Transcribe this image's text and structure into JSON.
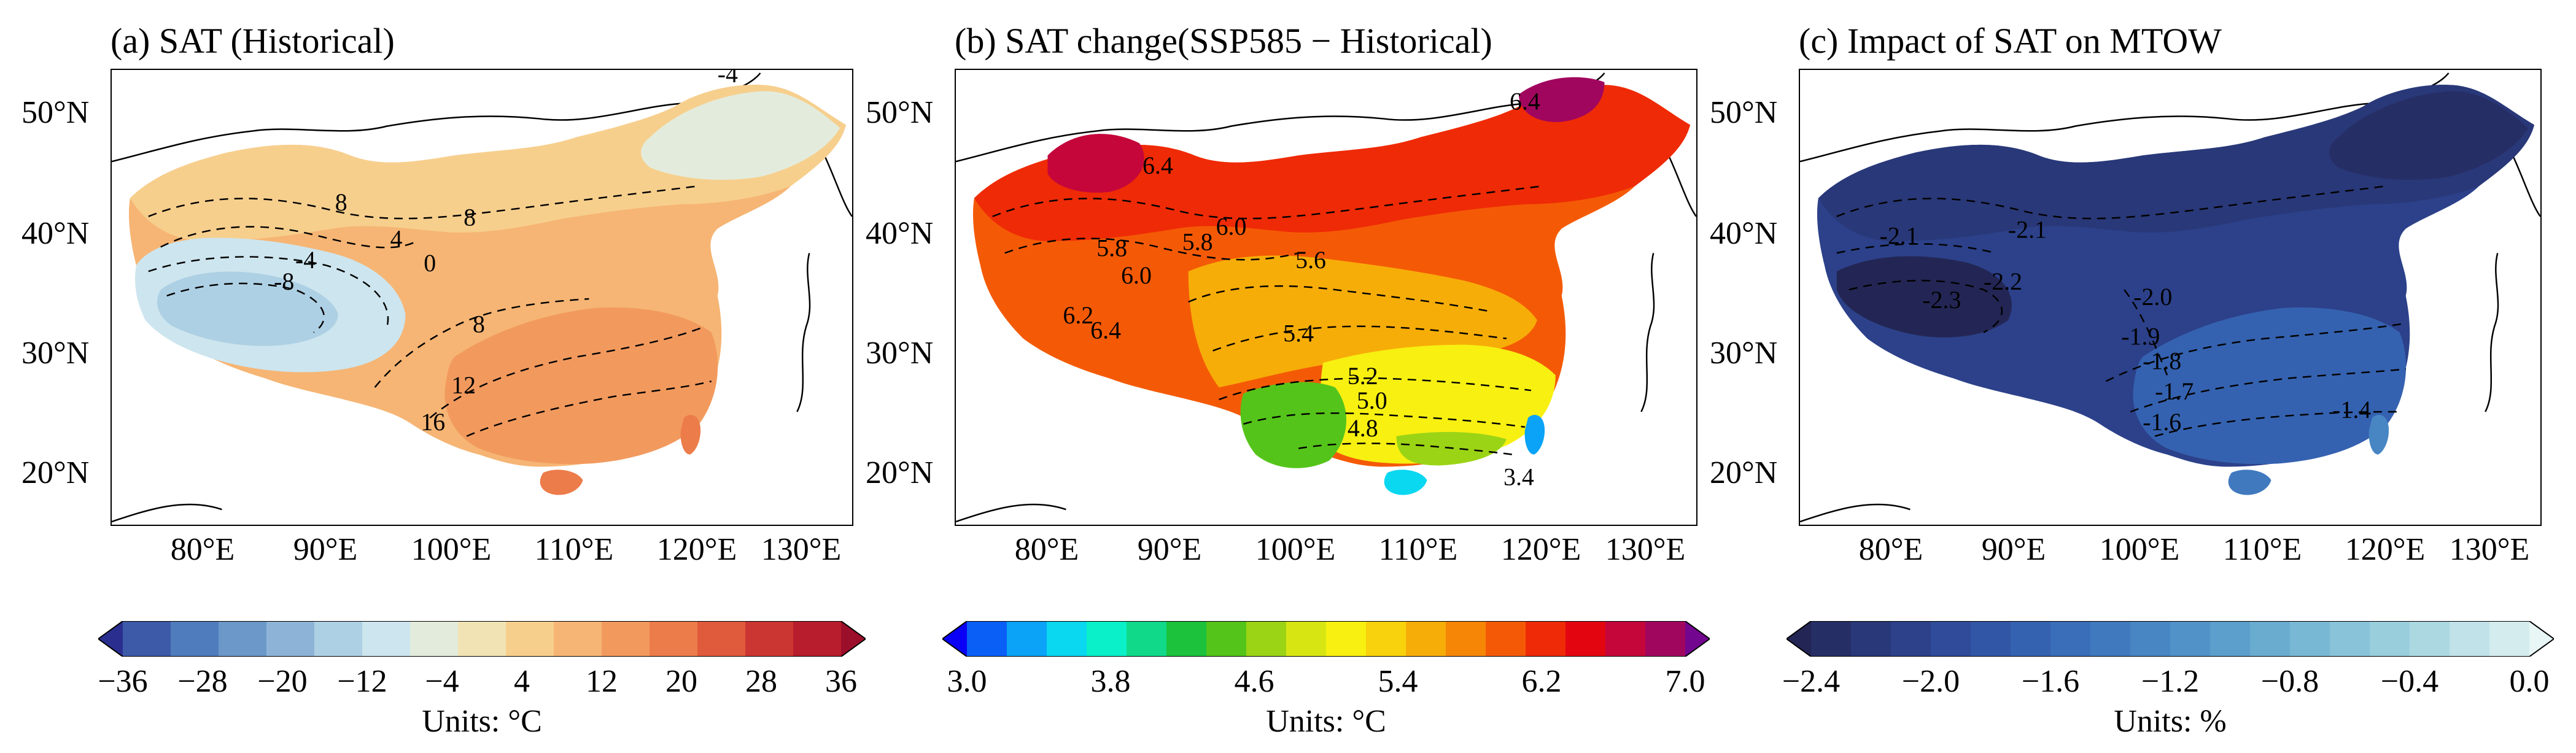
{
  "panels": [
    {
      "id": "a",
      "title": "(a) SAT (Historical)",
      "lat_labels": [
        "50°N",
        "40°N",
        "30°N",
        "20°N"
      ],
      "lon_labels": [
        "80°E",
        "90°E",
        "100°E",
        "110°E",
        "120°E",
        "130°E"
      ],
      "contour_labels": [
        "-4",
        "8",
        "8",
        "4",
        "0",
        "-4",
        "-8",
        "8",
        "12",
        "16"
      ],
      "colorbar": {
        "colors": [
          "#2a2f8f",
          "#3d5aa8",
          "#4f7cbc",
          "#6b98c9",
          "#8db4d7",
          "#aed0e4",
          "#cde5ee",
          "#e3ecdc",
          "#f2e3b4",
          "#f7cf8d",
          "#f6b574",
          "#f29a5e",
          "#ec7c4a",
          "#e05a3c",
          "#cc3632",
          "#b71d2d",
          "#9c0f2a"
        ],
        "ticks": [
          "−36",
          "−28",
          "−20",
          "−12",
          "−4",
          "4",
          "12",
          "20",
          "28",
          "36"
        ],
        "units": "Units: °C"
      }
    },
    {
      "id": "b",
      "title": "(b) SAT change(SSP585 − Historical)",
      "lat_labels": [
        "50°N",
        "40°N",
        "30°N",
        "20°N"
      ],
      "lon_labels": [
        "80°E",
        "90°E",
        "100°E",
        "110°E",
        "120°E",
        "130°E"
      ],
      "contour_labels": [
        "6.4",
        "6.4",
        "6.0",
        "5.8",
        "5.8",
        "6.0",
        "5.6",
        "5.4",
        "6.2",
        "6.4",
        "5.2",
        "5.0",
        "4.8",
        "3.4"
      ],
      "colorbar": {
        "colors": [
          "#0a00f5",
          "#0a5ff7",
          "#0aa3f7",
          "#0ad7f0",
          "#0af0c8",
          "#10d98a",
          "#1cc23c",
          "#55c41a",
          "#9bd415",
          "#d7e613",
          "#f7f011",
          "#f8d20c",
          "#f7ad08",
          "#f58606",
          "#f45a06",
          "#ef2a06",
          "#e30611",
          "#c4063b",
          "#a1065f",
          "#73068f"
        ],
        "ticks": [
          "3.0",
          "3.8",
          "4.6",
          "5.4",
          "6.2",
          "7.0"
        ],
        "units": "Units: °C"
      }
    },
    {
      "id": "c",
      "title": "(c) Impact of SAT on MTOW",
      "lat_labels": [
        "50°N",
        "40°N",
        "30°N",
        "20°N"
      ],
      "lon_labels": [
        "80°E",
        "90°E",
        "100°E",
        "110°E",
        "120°E",
        "130°E"
      ],
      "contour_labels": [
        "-2.1",
        "-2.1",
        "-2.2",
        "-2.3",
        "-2.0",
        "-1.9",
        "-1.8",
        "-1.7",
        "-1.6",
        "-1.4"
      ],
      "colorbar": {
        "colors": [
          "#232654",
          "#262e66",
          "#293878",
          "#2c418a",
          "#2f4b99",
          "#3256a6",
          "#3562b0",
          "#3a6eb8",
          "#4079be",
          "#4786c3",
          "#5193c8",
          "#5c9fcc",
          "#69acd0",
          "#78b8d4",
          "#88c3d9",
          "#99cedd",
          "#acd8e2",
          "#c0e2e8",
          "#d4ecee",
          "#e8f6f6"
        ],
        "ticks": [
          "−2.4",
          "−2.0",
          "−1.6",
          "−1.2",
          "−0.8",
          "−0.4",
          "0.0"
        ],
        "units": "Units: %"
      }
    }
  ]
}
